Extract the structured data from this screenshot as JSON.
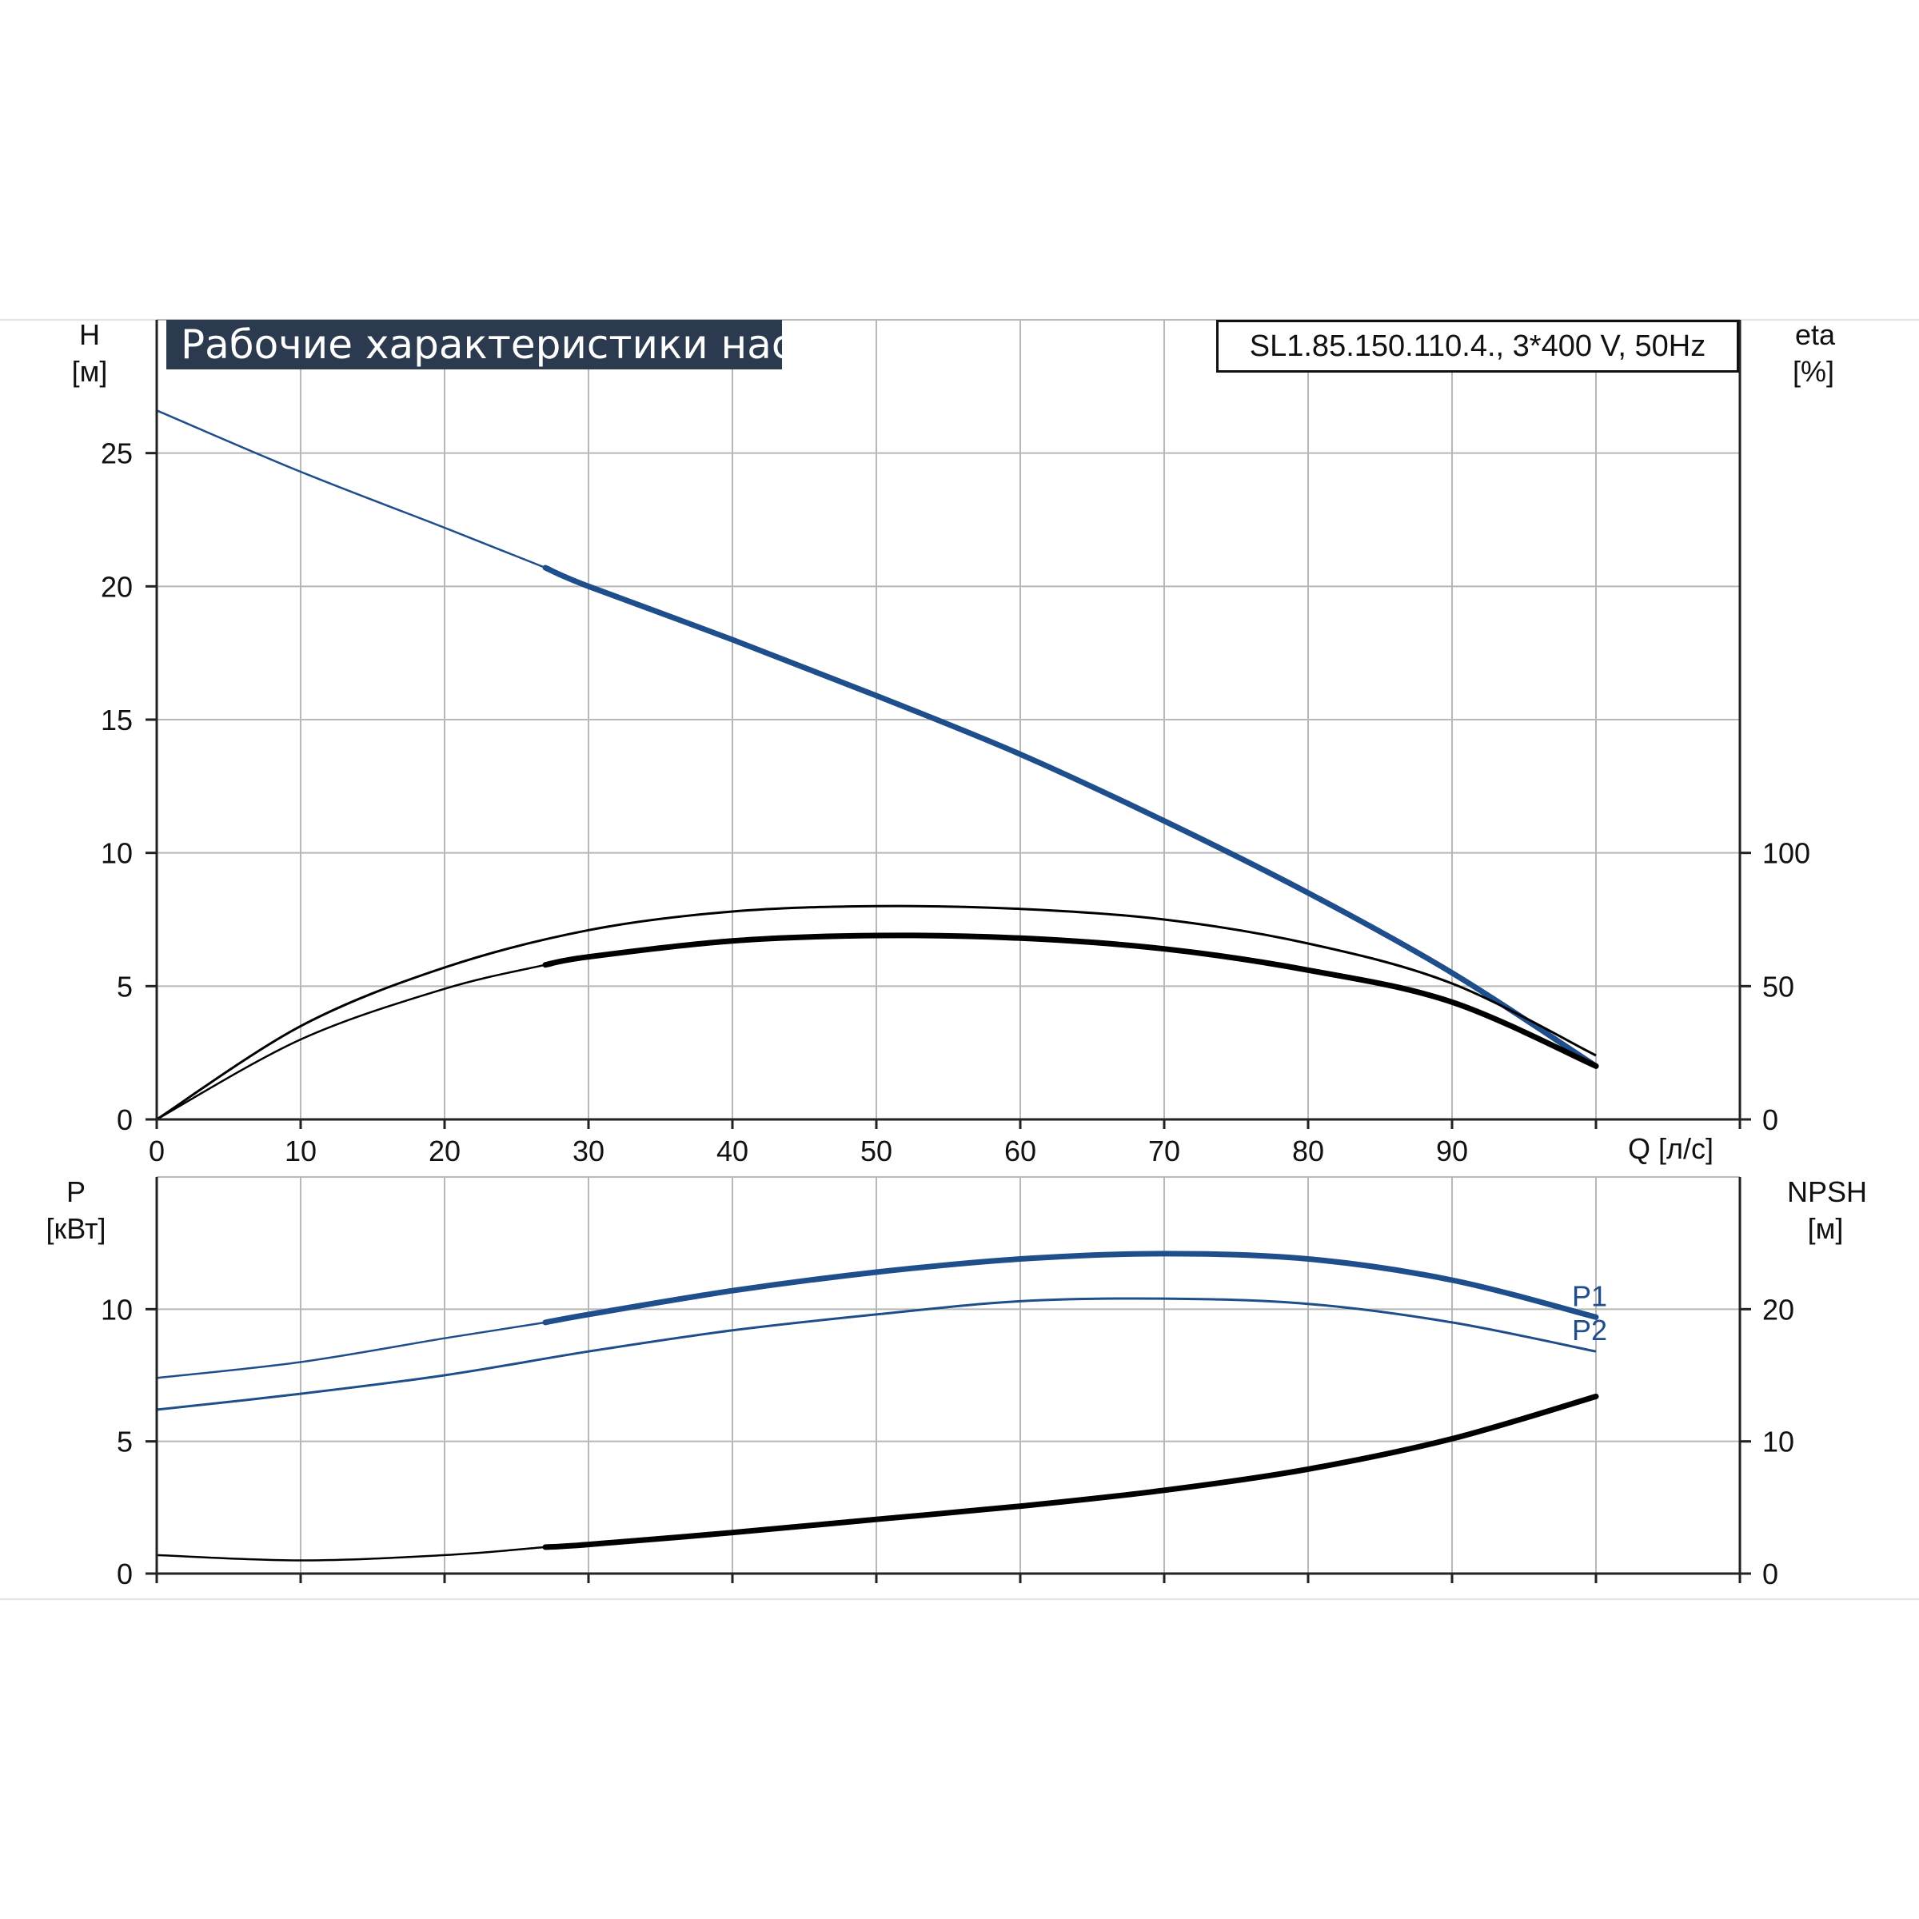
{
  "header": {
    "title": "Рабочие характеристики насоса",
    "model": "SL1.85.150.110.4., 3*400 V, 50Hz"
  },
  "colors": {
    "blue": "#1f4e8c",
    "black": "#000000",
    "grid": "#b8b8b8"
  },
  "chart_data": [
    {
      "type": "line",
      "panel": "top",
      "title": "Рабочие характеристики насоса",
      "xlabel": "Q [л/с]",
      "ylabel": "H [м]",
      "y2label": "eta [%]",
      "x_label_text": "Q [л/с]",
      "y_label_line1": "H",
      "y_label_line2": "[м]",
      "y2_label_line1": "eta",
      "y2_label_line2": "[%]",
      "xlim": [
        0,
        110
      ],
      "ylim": [
        0,
        30
      ],
      "y2lim": [
        0,
        300
      ],
      "x_ticks": [
        0,
        10,
        20,
        30,
        40,
        50,
        60,
        70,
        80,
        90
      ],
      "y_ticks": [
        0,
        5,
        10,
        15,
        20,
        25
      ],
      "y2_ticks": [
        0,
        50,
        100
      ],
      "grid": true,
      "series": [
        {
          "name": "H",
          "axis": "left",
          "color": "#1f4e8c",
          "bold_from": 27,
          "x": [
            0,
            10,
            20,
            27,
            30,
            40,
            50,
            60,
            70,
            80,
            90,
            100
          ],
          "y": [
            26.6,
            24.3,
            22.2,
            20.7,
            20.0,
            18.0,
            15.9,
            13.7,
            11.2,
            8.5,
            5.5,
            2.0
          ]
        },
        {
          "name": "eta",
          "axis": "right",
          "color": "#000000",
          "x": [
            0,
            10,
            20,
            30,
            40,
            50,
            60,
            70,
            80,
            90,
            100
          ],
          "y": [
            0,
            35,
            57,
            71,
            78,
            80,
            79,
            75,
            66,
            51,
            24
          ]
        },
        {
          "name": "etatot",
          "axis": "right",
          "color": "#000000",
          "bold_from": 27,
          "x": [
            0,
            10,
            20,
            27,
            30,
            40,
            50,
            60,
            70,
            80,
            90,
            100
          ],
          "y": [
            0,
            30,
            49,
            58,
            61,
            67,
            69,
            68,
            64,
            56,
            44,
            20
          ]
        }
      ]
    },
    {
      "type": "line",
      "panel": "bottom",
      "xlabel": "",
      "ylabel": "P [кВт]",
      "y2label": "NPSH [м]",
      "y_label_line1": "P",
      "y_label_line2": "[кВт]",
      "y2_label_line1": "NPSH",
      "y2_label_line2": "[м]",
      "xlim": [
        0,
        110
      ],
      "ylim": [
        0,
        15
      ],
      "y2lim": [
        0,
        30
      ],
      "y_ticks": [
        0,
        5,
        10
      ],
      "y2_ticks": [
        0,
        10,
        20
      ],
      "grid": true,
      "series": [
        {
          "name": "P1",
          "axis": "left",
          "color": "#1f4e8c",
          "bold_from": 27,
          "label": "P1",
          "x": [
            0,
            10,
            20,
            27,
            30,
            40,
            50,
            60,
            70,
            80,
            90,
            100
          ],
          "y": [
            7.4,
            8.0,
            8.9,
            9.5,
            9.8,
            10.7,
            11.4,
            11.9,
            12.1,
            11.9,
            11.1,
            9.7
          ]
        },
        {
          "name": "P2",
          "axis": "left",
          "color": "#1f4e8c",
          "label": "P2",
          "x": [
            0,
            10,
            20,
            30,
            40,
            50,
            60,
            70,
            80,
            90,
            100
          ],
          "y": [
            6.2,
            6.8,
            7.5,
            8.4,
            9.2,
            9.8,
            10.3,
            10.4,
            10.2,
            9.5,
            8.4
          ]
        },
        {
          "name": "NPSH",
          "axis": "right",
          "color": "#000000",
          "bold_from": 27,
          "x": [
            0,
            10,
            20,
            27,
            30,
            40,
            50,
            60,
            70,
            80,
            90,
            100
          ],
          "y": [
            1.4,
            1.0,
            1.4,
            2.0,
            2.2,
            3.1,
            4.1,
            5.1,
            6.3,
            7.9,
            10.2,
            13.4
          ]
        }
      ]
    }
  ]
}
